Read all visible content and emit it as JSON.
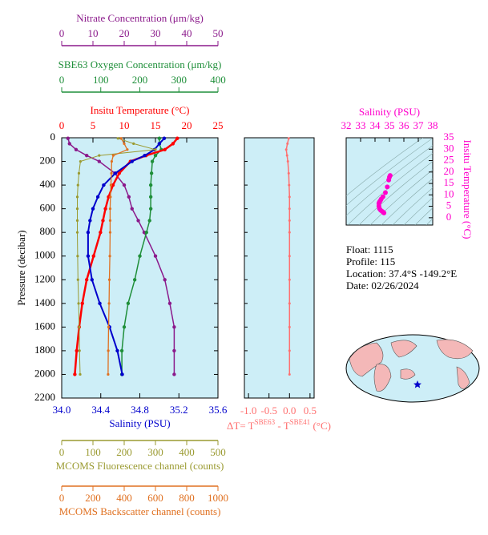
{
  "chart_data": [
    {
      "type": "line",
      "y_label": "Pressure (decibar)",
      "y_inverted": true,
      "y": [
        5,
        50,
        100,
        150,
        200,
        300,
        400,
        500,
        600,
        700,
        800,
        1000,
        1200,
        1400,
        1600,
        1800,
        2000
      ],
      "ylim": [
        0,
        2200
      ],
      "yticks": [
        0,
        200,
        400,
        600,
        800,
        1000,
        1200,
        1400,
        1600,
        1800,
        2000,
        2200
      ],
      "background": "#cdeef7",
      "series": [
        {
          "name": "Nitrate Concentration (μm/kg)",
          "color": "#8b1a8b",
          "markers": true,
          "xlim": [
            0,
            50
          ],
          "xticks": [
            0,
            10,
            20,
            30,
            40,
            50
          ],
          "values": [
            2,
            2.5,
            4.6,
            8,
            12,
            17,
            20,
            21.5,
            22.5,
            24.5,
            26.4,
            30,
            33,
            34.6,
            36,
            36,
            36
          ]
        },
        {
          "name": "SBE63 Oxygen Concentration (μm/kg)",
          "color": "#1f8f3a",
          "markers": true,
          "xlim": [
            0,
            400
          ],
          "xticks": [
            0,
            100,
            200,
            300,
            400
          ],
          "values": [
            250,
            250,
            255,
            240,
            232,
            230,
            228,
            228,
            228,
            225,
            217,
            200,
            187,
            170,
            160,
            154,
            154
          ]
        },
        {
          "name": "Insitu Temperature (°C)",
          "color": "#ff0000",
          "markers": true,
          "xlim": [
            0,
            25
          ],
          "xticks": [
            0,
            5,
            10,
            15,
            20,
            25
          ],
          "values": [
            18.5,
            17.8,
            16.5,
            13.5,
            11,
            9.2,
            8.2,
            7.5,
            7,
            6.6,
            6.2,
            5.1,
            4.0,
            3.3,
            2.8,
            2.4,
            2.1
          ]
        },
        {
          "name": "Salinity (PSU)",
          "color": "#0000cc",
          "markers": true,
          "xlim": [
            34.0,
            35.6
          ],
          "xticks": [
            {
              "value": 34.0,
              "label": "34.0"
            },
            34.4,
            34.8,
            35.2,
            35.6
          ],
          "values": [
            35.05,
            35.0,
            34.95,
            34.85,
            34.72,
            34.55,
            34.43,
            34.37,
            34.32,
            34.29,
            34.27,
            34.27,
            34.31,
            34.39,
            34.49,
            34.57,
            34.62
          ]
        },
        {
          "name": "MCOMS Fluorescence channel (counts)",
          "color": "#9a9a30",
          "markers": true,
          "xlim": [
            0,
            500
          ],
          "xticks": [
            0,
            100,
            200,
            300,
            400,
            500
          ],
          "values": [
            180,
            230,
            300,
            120,
            60,
            55,
            52,
            50,
            50,
            50,
            50,
            51,
            52,
            54,
            56,
            57,
            59
          ]
        },
        {
          "name": "MCOMS Backscatter channel (counts)",
          "color": "#e07020",
          "markers": true,
          "xlim": [
            0,
            1000
          ],
          "xticks": [
            0,
            200,
            400,
            600,
            800,
            1000
          ],
          "values": [
            380,
            400,
            420,
            330,
            320,
            318,
            315,
            312,
            310,
            310,
            310,
            308,
            305,
            303,
            300,
            298,
            297
          ]
        }
      ]
    },
    {
      "type": "line",
      "x_label": [
        "ΔT= T",
        "SBE63",
        " - T",
        "SBE41",
        " (°C)"
      ],
      "color": "#ff7070",
      "xlim": [
        -1.1,
        0.6
      ],
      "xticks": [
        {
          "value": -1.0,
          "label": "-1.0"
        },
        -0.5,
        {
          "value": 0.0,
          "label": "0.0"
        },
        0.5
      ],
      "values": [
        -0.02,
        -0.05,
        -0.08,
        -0.06,
        -0.04,
        -0.02,
        -0.01,
        0,
        0,
        0,
        0,
        0,
        0,
        0,
        0,
        0,
        0
      ]
    },
    {
      "type": "scatter",
      "x_label": "Salinity (PSU)",
      "y_label": "Insitu Temperature (°C)",
      "color": "#ff00cc",
      "xlim": [
        32,
        38
      ],
      "xticks": [
        32,
        33,
        34,
        35,
        36,
        37,
        38
      ],
      "ylim": [
        -3.2,
        35
      ],
      "yticks": [
        0,
        5,
        10,
        15,
        20,
        25,
        30,
        35
      ]
    }
  ],
  "info": [
    "Float:  1115",
    "Profile:  115",
    "Location:  37.4°S  -149.2°E",
    "Date:  02/26/2024"
  ]
}
